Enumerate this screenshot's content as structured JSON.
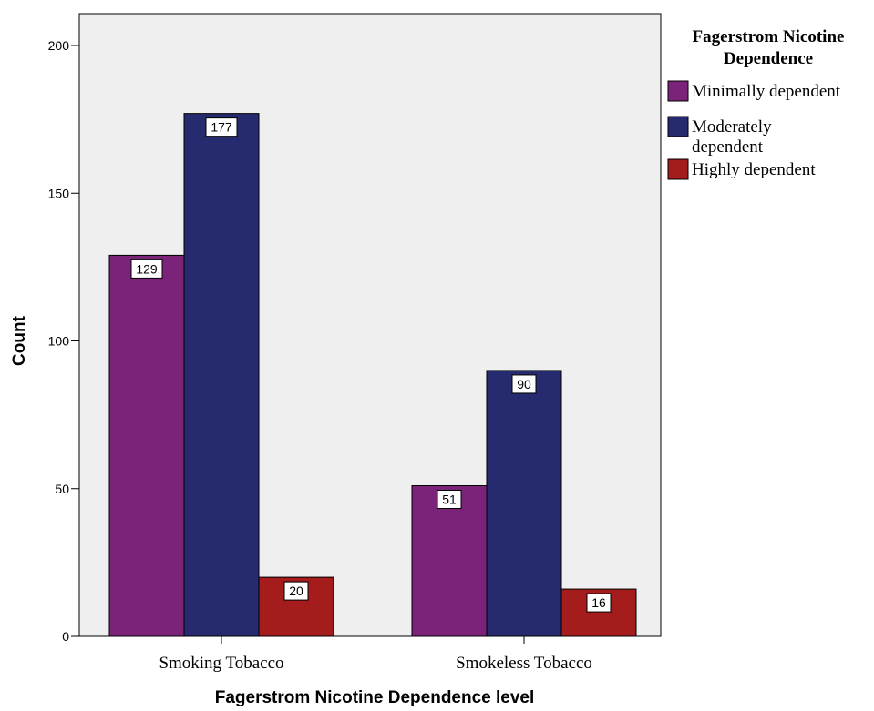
{
  "chart_data": {
    "type": "bar",
    "categories": [
      "Smoking Tobacco",
      "Smokeless Tobacco"
    ],
    "series": [
      {
        "name": "Minimally dependent",
        "values": [
          129,
          51
        ],
        "color": "#7b2379"
      },
      {
        "name": "Moderately dependent",
        "values": [
          177,
          90
        ],
        "color": "#262a6e"
      },
      {
        "name": "Highly dependent",
        "values": [
          20,
          16
        ],
        "color": "#a51c1c"
      }
    ],
    "xlabel": "Fagerstrom Nicotine Dependence level",
    "ylabel": "Count",
    "ylim": [
      0,
      200
    ],
    "yticks": [
      0,
      50,
      100,
      150,
      200
    ],
    "legend": {
      "title_lines": [
        "Fagerstrom Nicotine",
        "Dependence"
      ],
      "entries": [
        {
          "lines": [
            "Minimally dependent"
          ]
        },
        {
          "lines": [
            "Moderately",
            "dependent"
          ]
        },
        {
          "lines": [
            "Highly dependent"
          ]
        }
      ],
      "placement": "right"
    },
    "plot_background": "#efefef",
    "grid": false,
    "data_labels": true
  }
}
